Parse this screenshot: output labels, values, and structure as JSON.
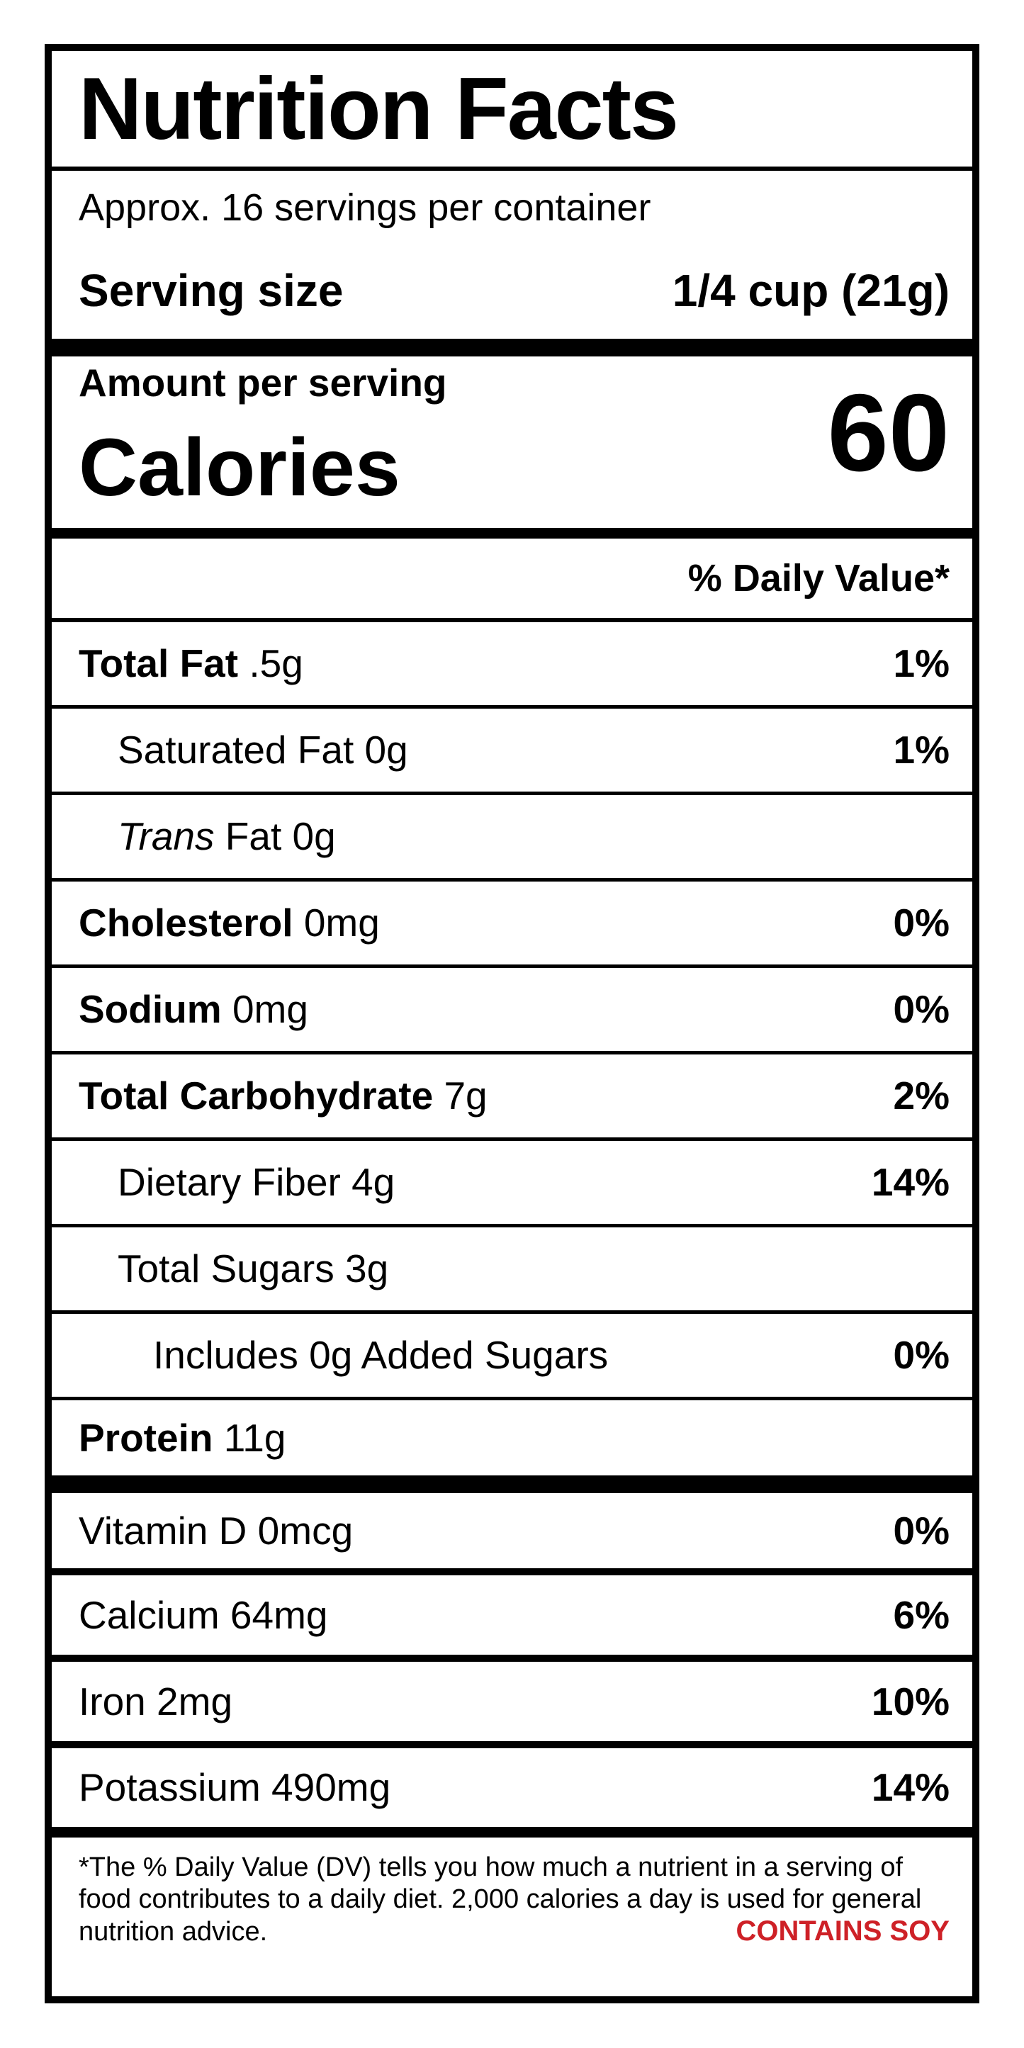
{
  "label": {
    "title": "Nutrition Facts",
    "servings_per_container": "Approx. 16 servings per container",
    "serving_size_label": "Serving size",
    "serving_size_value": "1/4 cup (21g)",
    "amount_per_serving": "Amount per serving",
    "calories_label": "Calories",
    "calories_value": "60",
    "daily_value_header": "% Daily Value*",
    "rows": [
      {
        "name": "Total Fat",
        "amount": ".5g",
        "dv": "1%"
      },
      {
        "name": "Saturated Fat",
        "amount": "0g",
        "dv": "1%"
      },
      {
        "name": "Trans",
        "amount": "Fat 0g",
        "dv": ""
      },
      {
        "name": "Cholesterol",
        "amount": "0mg",
        "dv": "0%"
      },
      {
        "name": "Sodium",
        "amount": "0mg",
        "dv": "0%"
      },
      {
        "name": "Total Carbohydrate",
        "amount": "7g",
        "dv": "2%"
      },
      {
        "name": "Dietary Fiber",
        "amount": "4g",
        "dv": "14%"
      },
      {
        "name": "Total Sugars",
        "amount": "3g",
        "dv": ""
      },
      {
        "name": "Includes 0g Added Sugars",
        "amount": "",
        "dv": "0%"
      },
      {
        "name": "Protein",
        "amount": "11g",
        "dv": ""
      }
    ],
    "vitamins": [
      {
        "name": "Vitamin D 0mcg",
        "dv": "0%"
      },
      {
        "name": "Calcium 64mg",
        "dv": "6%"
      },
      {
        "name": "Iron 2mg",
        "dv": "10%"
      },
      {
        "name": "Potassium 490mg",
        "dv": "14%"
      }
    ],
    "footnote_line1": "*The % Daily Value (DV) tells you how much a nutrient in a serving of",
    "footnote_line2": "food contributes to a daily diet. 2,000 calories a day is used for general",
    "footnote_line3": "nutrition advice.",
    "allergen_statement": "CONTAINS SOY",
    "colors": {
      "allergen_red": "#ce2127",
      "text_black": "#000000"
    }
  }
}
